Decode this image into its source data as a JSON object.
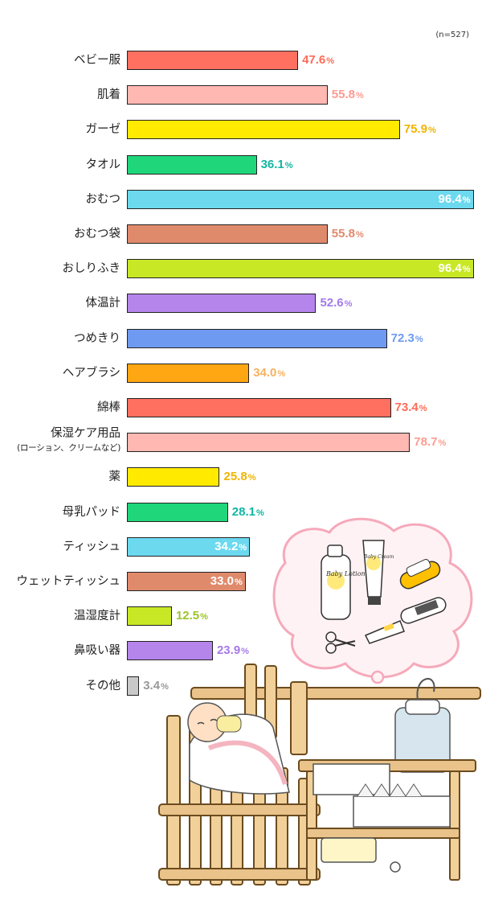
{
  "note": "(n=527)",
  "chart_data": {
    "type": "bar",
    "orientation": "horizontal",
    "unit": "%",
    "xlim": [
      0,
      100
    ],
    "grid": false,
    "categories": [
      {
        "label": "ベビー服",
        "sub": "",
        "value": 47.6,
        "color": "#ff7060",
        "label_color": "#ff6b57"
      },
      {
        "label": "肌着",
        "sub": "",
        "value": 55.8,
        "color": "#ffb8b2",
        "label_color": "#ff9b91"
      },
      {
        "label": "ガーゼ",
        "sub": "",
        "value": 75.9,
        "color": "#ffea00",
        "label_color": "#f0b400"
      },
      {
        "label": "タオル",
        "sub": "",
        "value": 36.1,
        "color": "#1fd67a",
        "label_color": "#10b7a2"
      },
      {
        "label": "おむつ",
        "sub": "",
        "value": 96.4,
        "color": "#6cd9ef",
        "label_color": "#ffffff"
      },
      {
        "label": "おむつ袋",
        "sub": "",
        "value": 55.8,
        "color": "#e08a6c",
        "label_color": "#e08a6c"
      },
      {
        "label": "おしりふき",
        "sub": "",
        "value": 96.4,
        "color": "#c8e825",
        "label_color": "#ffffff"
      },
      {
        "label": "体温計",
        "sub": "",
        "value": 52.6,
        "color": "#b585ec",
        "label_color": "#a57ae8"
      },
      {
        "label": "つめきり",
        "sub": "",
        "value": 72.3,
        "color": "#6f9af1",
        "label_color": "#6f9af1"
      },
      {
        "label": "ヘアブラシ",
        "sub": "",
        "value": 34.0,
        "color": "#ffa712",
        "label_color": "#f6b25f"
      },
      {
        "label": "綿棒",
        "sub": "",
        "value": 73.4,
        "color": "#ff7060",
        "label_color": "#ff6b57"
      },
      {
        "label": "保湿ケア用品",
        "sub": "(ローション、クリームなど)",
        "value": 78.7,
        "color": "#ffb8b2",
        "label_color": "#ff9b91"
      },
      {
        "label": "薬",
        "sub": "",
        "value": 25.8,
        "color": "#ffea00",
        "label_color": "#f0b400"
      },
      {
        "label": "母乳パッド",
        "sub": "",
        "value": 28.1,
        "color": "#1fd67a",
        "label_color": "#10b7a2"
      },
      {
        "label": "ティッシュ",
        "sub": "",
        "value": 34.2,
        "color": "#6cd9ef",
        "label_color": "#ffffff"
      },
      {
        "label": "ウェットティッシュ",
        "sub": "",
        "value": 33.0,
        "color": "#e08a6c",
        "label_color": "#ffffff"
      },
      {
        "label": "温湿度計",
        "sub": "",
        "value": 12.5,
        "color": "#c8e825",
        "label_color": "#9cc42a"
      },
      {
        "label": "鼻吸い器",
        "sub": "",
        "value": 23.9,
        "color": "#b585ec",
        "label_color": "#a57ae8"
      },
      {
        "label": "その他",
        "sub": "",
        "value": 3.4,
        "color": "#c9c9c9",
        "label_color": "#999999"
      }
    ],
    "inside_labels": [
      "おむつ",
      "おしりふき",
      "ティッシュ",
      "ウェットティッシュ"
    ],
    "illustration": "baby-crib-with-care-items",
    "product_texts": [
      "Baby Lotion",
      "Baby Cream"
    ]
  }
}
